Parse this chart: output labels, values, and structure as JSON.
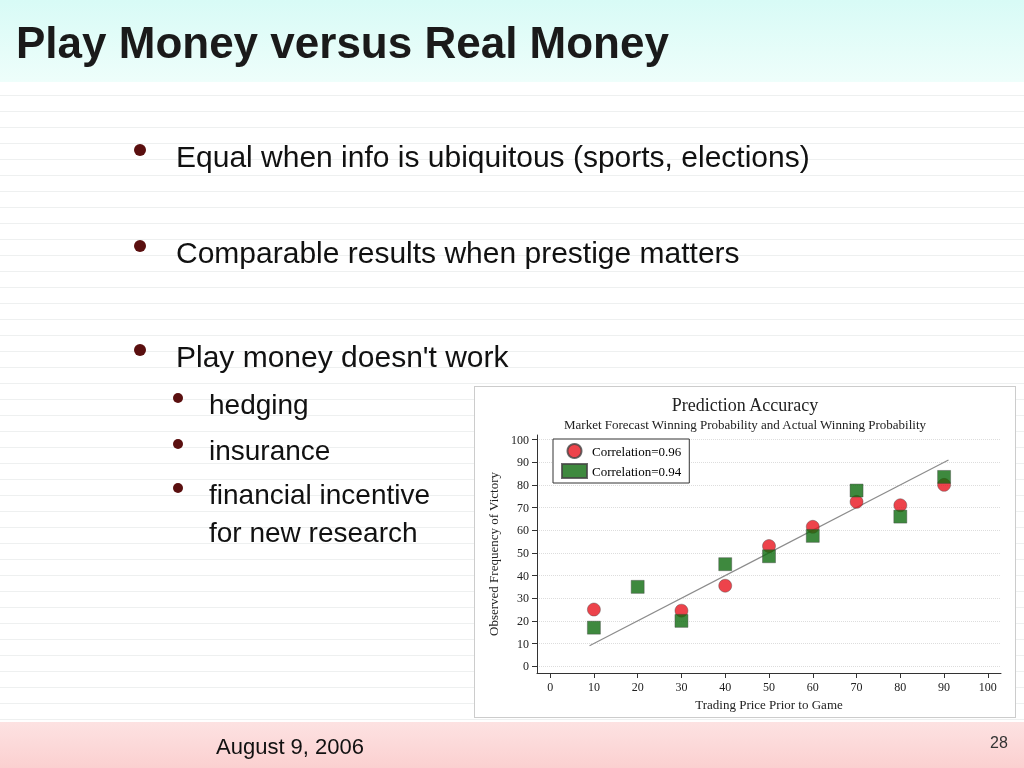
{
  "chart_data": {
    "type": "scatter",
    "title": "Prediction Accuracy",
    "subtitle": "Market Forecast Winning Probability and Actual Winning Probability",
    "xlabel": "Trading Price Prior to Game",
    "ylabel": "Observed Frequency of Victory",
    "x": [
      10,
      20,
      30,
      40,
      50,
      60,
      70,
      80,
      90
    ],
    "series": [
      {
        "name": "Correlation=0.96",
        "color": "#e8141e",
        "marker": "circle",
        "values": [
          25,
          null,
          24.5,
          35.5,
          53,
          61.5,
          72.5,
          71,
          80
        ]
      },
      {
        "name": "Correlation=0.94",
        "color": "#0e6b0e",
        "marker": "square",
        "values": [
          17,
          35,
          20,
          45,
          48.5,
          57.5,
          77.5,
          66,
          83.5
        ]
      },
      {
        "type": "line",
        "color": "#8c8c8c",
        "marker": "none",
        "x": [
          9,
          91
        ],
        "values": [
          9,
          91
        ]
      }
    ],
    "xlim": [
      -3,
      103
    ],
    "ylim": [
      -3,
      102
    ],
    "xticks": [
      0,
      10,
      20,
      30,
      40,
      50,
      60,
      70,
      80,
      90,
      100
    ],
    "yticks": [
      0,
      10,
      20,
      30,
      40,
      50,
      60,
      70,
      80,
      90,
      100
    ],
    "grid": "y",
    "legend": "top left",
    "annotations": [
      "Play Money versus Real Money",
      "Equal when info is ubiquitous (sports, elections)",
      "Comparable results when prestige matters",
      "Play money doesn't work",
      "hedging",
      "insurance",
      "financial incentive for new research",
      "August 9, 2006",
      "28"
    ]
  }
}
